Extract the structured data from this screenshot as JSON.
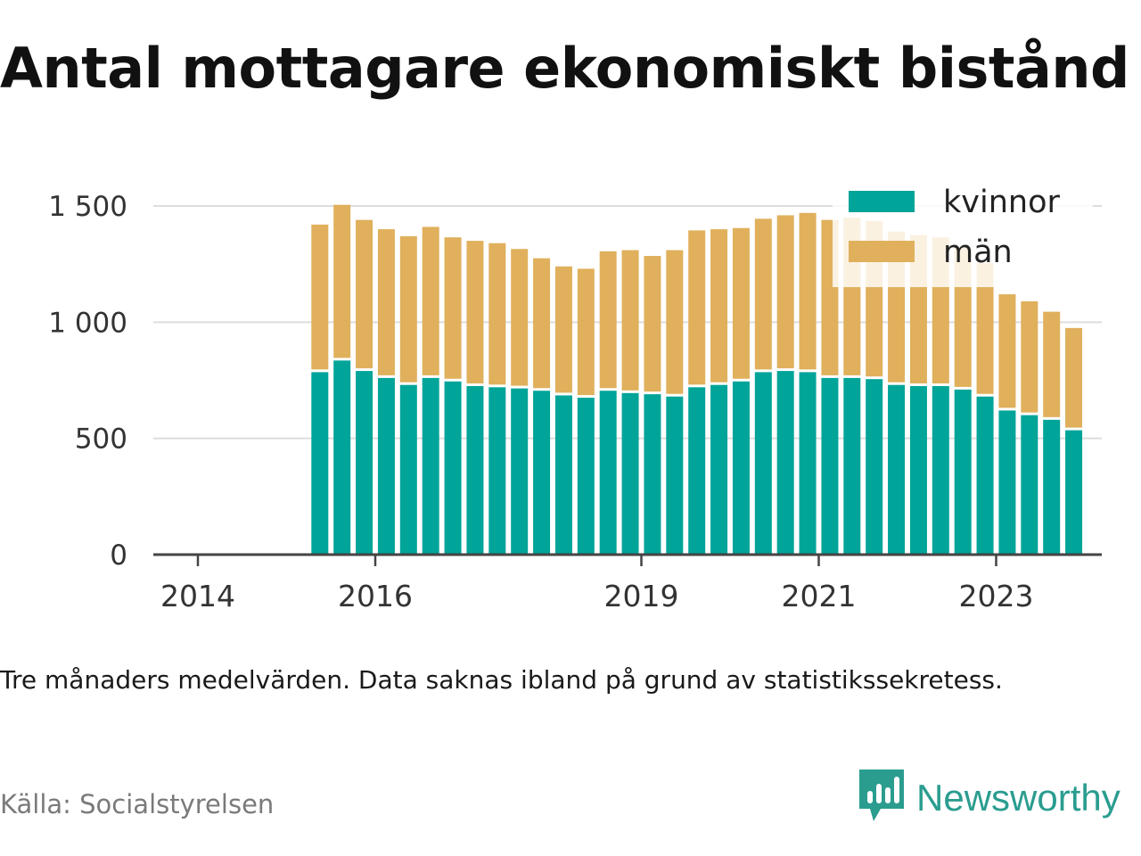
{
  "title": "Antal mottagare ekonomiskt bistånd",
  "note": "Tre månaders medelvärden. Data saknas ibland på grund av statistikssekretess.",
  "source": "Källa: Socialstyrelsen",
  "brand": "Newsworthy",
  "colors": {
    "kvinnor": "#00a499",
    "man": "#e0b05c",
    "grid": "#dddddd",
    "axis": "#444444",
    "brand": "#2a9d8f"
  },
  "chart_data": {
    "type": "bar",
    "stacked": true,
    "ylim": [
      0,
      1500
    ],
    "y_ticks": [
      0,
      500,
      1000,
      1500
    ],
    "y_tick_labels": [
      "0",
      "500",
      "1 000",
      "1 500"
    ],
    "x_ticks": [
      "2014",
      "2016",
      "2019",
      "2021",
      "2023"
    ],
    "legend_position": "top-right",
    "categories": [
      "2015 Q2",
      "2015 Q3",
      "2015 Q4",
      "2016 Q1",
      "2016 Q2",
      "2016 Q3",
      "2016 Q4",
      "2017 Q1",
      "2017 Q2",
      "2017 Q3",
      "2017 Q4",
      "2018 Q1",
      "2018 Q2",
      "2018 Q3",
      "2018 Q4",
      "2019 Q1",
      "2019 Q2",
      "2019 Q3",
      "2019 Q4",
      "2020 Q1",
      "2020 Q2",
      "2020 Q3",
      "2020 Q4",
      "2021 Q1",
      "2021 Q2",
      "2021 Q3",
      "2021 Q4",
      "2022 Q1",
      "2022 Q2",
      "2022 Q3",
      "2022 Q4",
      "2023 Q1",
      "2023 Q2",
      "2023 Q3",
      "2023 Q4"
    ],
    "series": [
      {
        "name": "kvinnor",
        "values": [
          785,
          835,
          790,
          760,
          730,
          760,
          745,
          725,
          720,
          715,
          705,
          685,
          675,
          705,
          695,
          690,
          680,
          720,
          730,
          745,
          785,
          790,
          785,
          760,
          760,
          755,
          730,
          725,
          725,
          710,
          680,
          620,
          600,
          580,
          535
        ]
      },
      {
        "name": "män",
        "values": [
          635,
          670,
          650,
          640,
          640,
          650,
          620,
          625,
          620,
          600,
          570,
          555,
          555,
          600,
          615,
          595,
          630,
          675,
          670,
          660,
          660,
          670,
          685,
          680,
          690,
          680,
          660,
          650,
          640,
          615,
          575,
          500,
          490,
          465,
          440
        ]
      }
    ]
  }
}
